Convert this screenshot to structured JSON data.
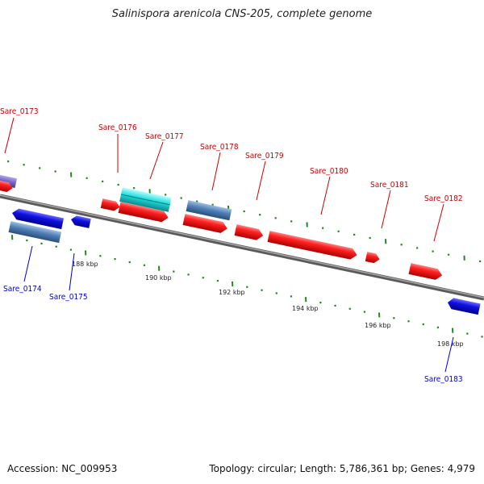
{
  "title": "Salinispora arenicola CNS-205, complete genome",
  "footer": {
    "accession": "Accession: NC_009953",
    "summary": "Topology: circular; Length: 5,786,361 bp; Genes: 4,979"
  },
  "colors": {
    "forward_label": "#cc0000",
    "reverse_label": "#0000cc",
    "forward_cds": "#ee1111",
    "reverse_cds": "#1111dd",
    "highlight_cds": "#22dddd",
    "steel_cds": "#4f7fb4",
    "purple_cds": "#7b68cc",
    "tick_green": "#228822",
    "backbone": "#777777"
  },
  "scale_labels": [
    {
      "label": "188 kbp"
    },
    {
      "label": "190 kbp"
    },
    {
      "label": "192 kbp"
    },
    {
      "label": "194 kbp"
    },
    {
      "label": "196 kbp"
    },
    {
      "label": "198 kbp"
    }
  ],
  "forward_gene_labels": [
    {
      "label": "Sare_0173"
    },
    {
      "label": "Sare_0176"
    },
    {
      "label": "Sare_0177"
    },
    {
      "label": "Sare_0178"
    },
    {
      "label": "Sare_0179"
    },
    {
      "label": "Sare_0180"
    },
    {
      "label": "Sare_0181"
    },
    {
      "label": "Sare_0182"
    }
  ],
  "reverse_gene_labels": [
    {
      "label": "Sare_0174"
    },
    {
      "label": "Sare_0175"
    },
    {
      "label": "Sare_0183"
    }
  ]
}
